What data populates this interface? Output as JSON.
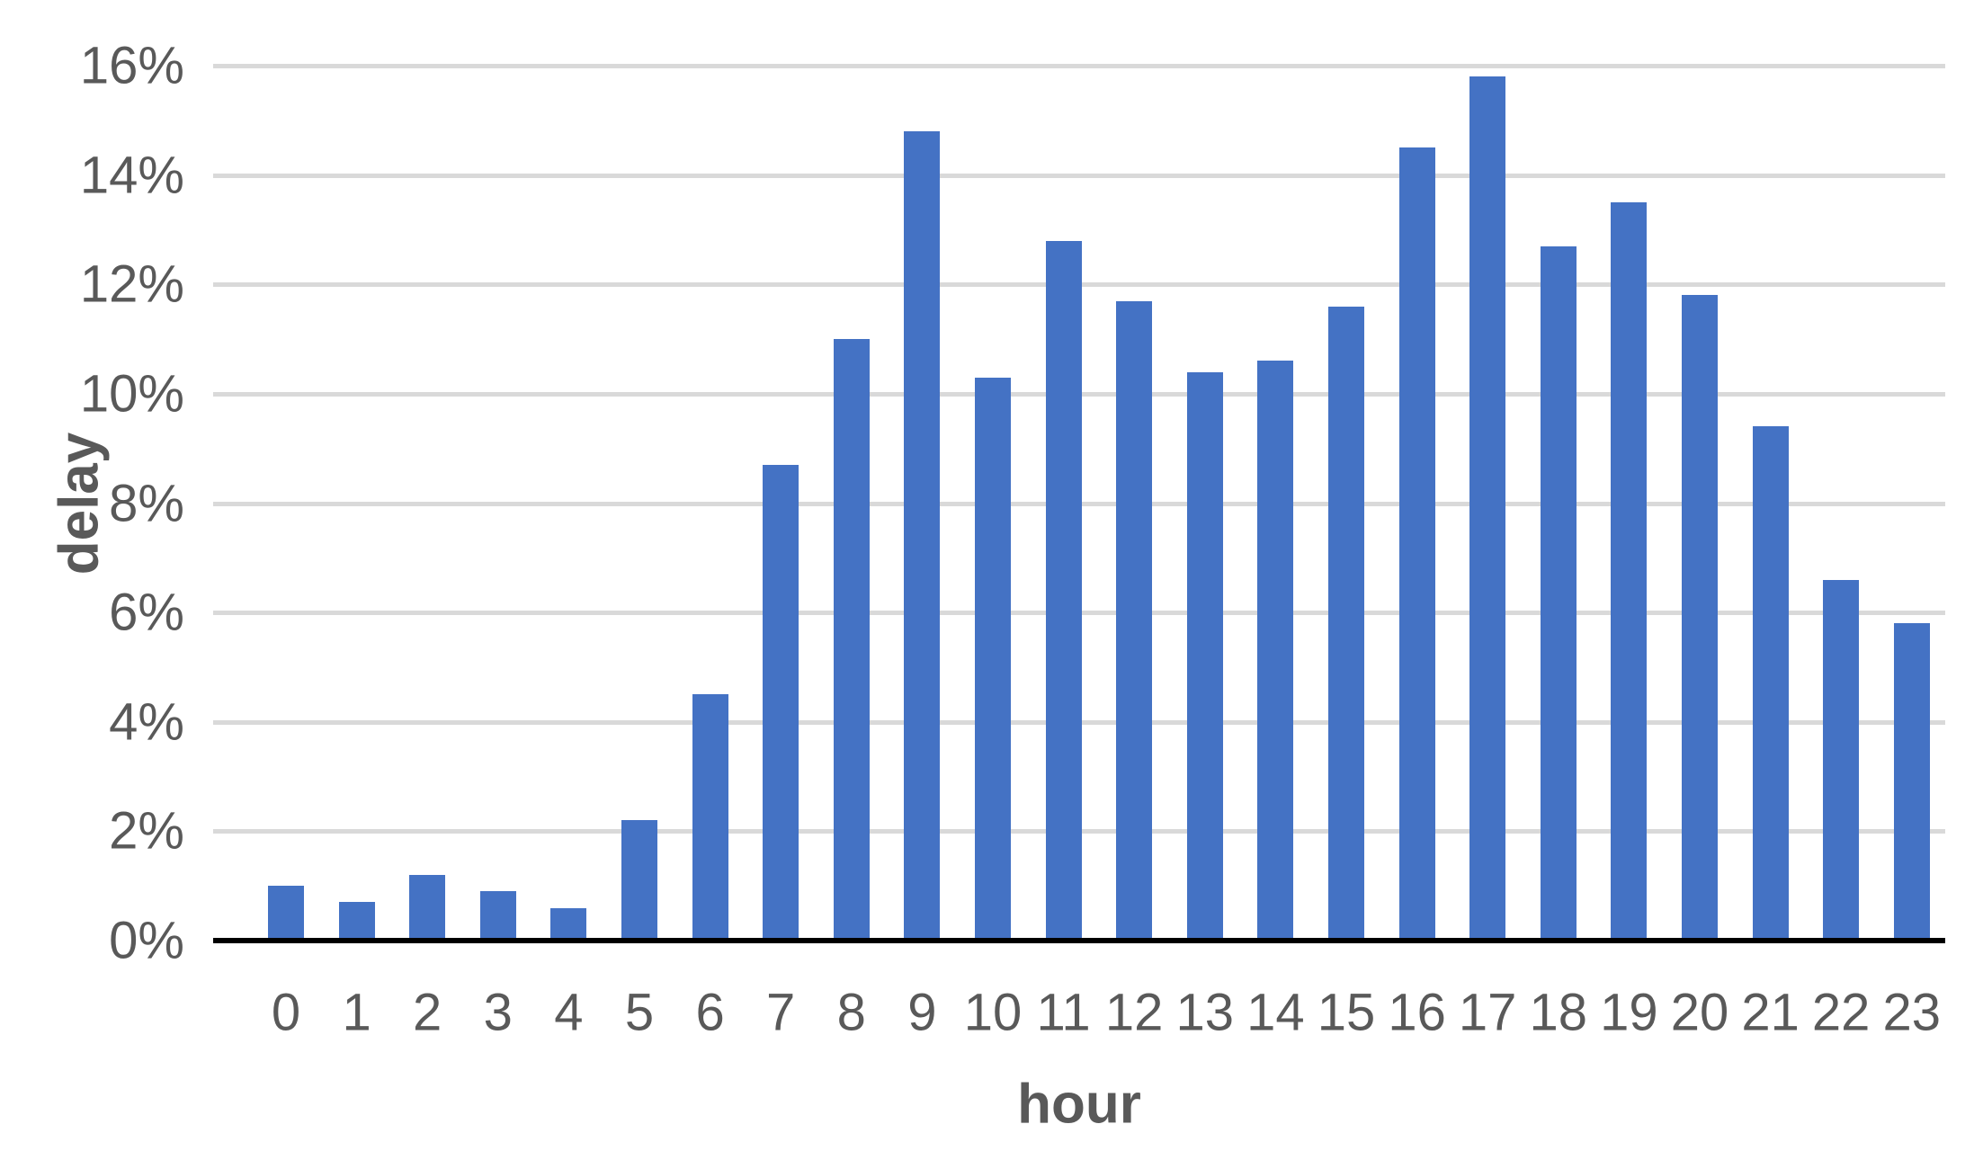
{
  "chart_data": {
    "type": "bar",
    "title": "",
    "xlabel": "hour",
    "ylabel": "delay",
    "categories": [
      "0",
      "1",
      "2",
      "3",
      "4",
      "5",
      "6",
      "7",
      "8",
      "9",
      "10",
      "11",
      "12",
      "13",
      "14",
      "15",
      "16",
      "17",
      "18",
      "19",
      "20",
      "21",
      "22",
      "23"
    ],
    "values": [
      1.0,
      0.7,
      1.2,
      0.9,
      0.6,
      2.2,
      4.5,
      8.7,
      11.0,
      14.8,
      10.3,
      12.8,
      11.7,
      10.4,
      10.6,
      11.6,
      14.5,
      15.8,
      12.7,
      13.5,
      11.8,
      9.4,
      6.6,
      5.8
    ],
    "y_ticks": [
      {
        "value": 0,
        "label": "0%"
      },
      {
        "value": 2,
        "label": "2%"
      },
      {
        "value": 4,
        "label": "4%"
      },
      {
        "value": 6,
        "label": "6%"
      },
      {
        "value": 8,
        "label": "8%"
      },
      {
        "value": 10,
        "label": "10%"
      },
      {
        "value": 12,
        "label": "12%"
      },
      {
        "value": 14,
        "label": "14%"
      },
      {
        "value": 16,
        "label": "16%"
      }
    ],
    "ylim": [
      0,
      16
    ],
    "grid": true,
    "legend": null,
    "colors": {
      "bar": "#4472C4",
      "gridline": "#D9D9D9",
      "axis_line": "#000000",
      "tick_text": "#595959",
      "axis_title_text": "#595959",
      "background": "#FFFFFF"
    }
  }
}
